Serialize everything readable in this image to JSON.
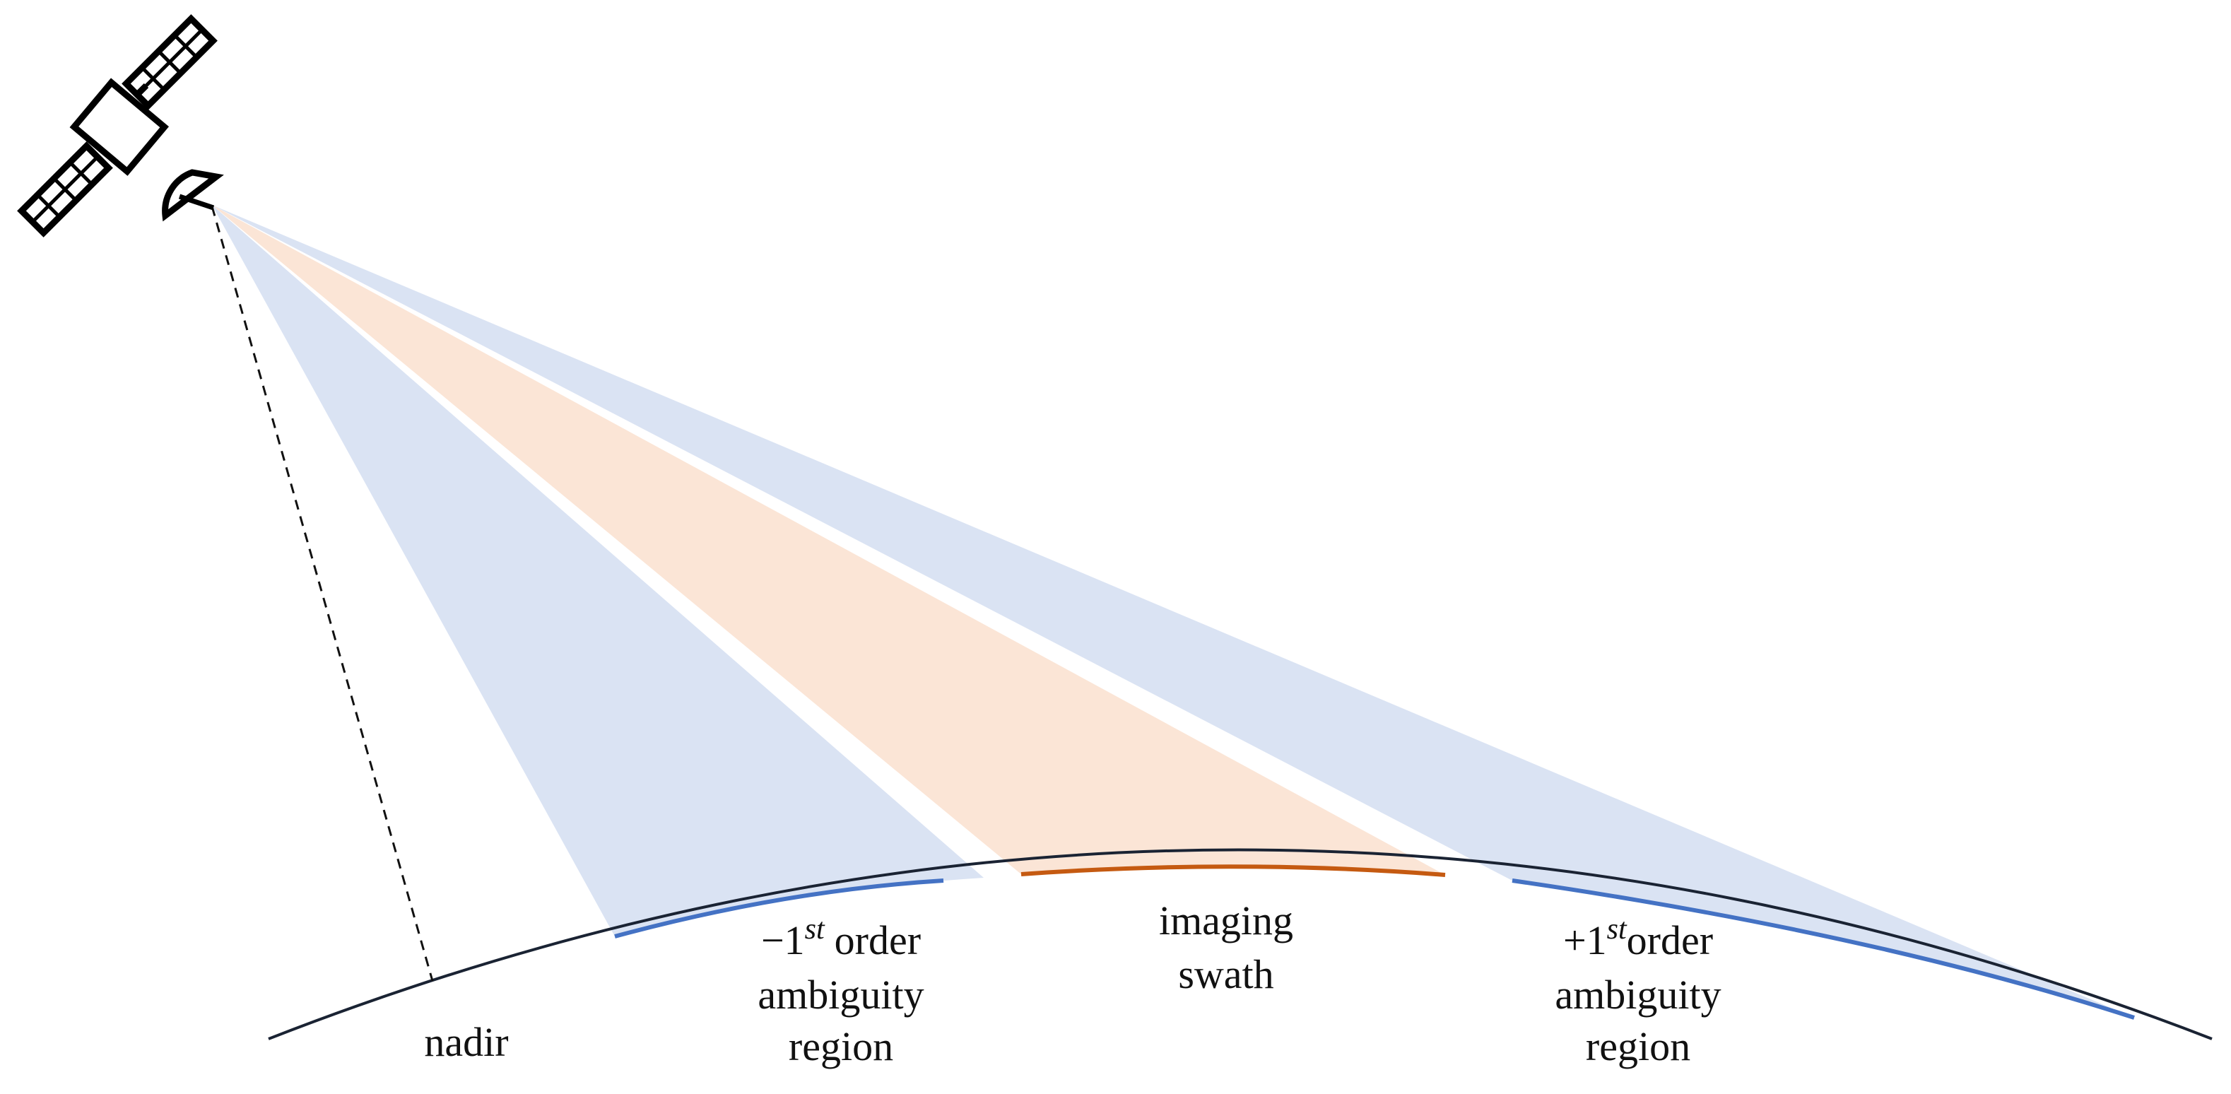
{
  "colors": {
    "ambiguity_beam": "#dae3f3",
    "swath_beam": "#fbe5d6",
    "ambiguity_ground": "#4472c4",
    "swath_ground": "#c55a11",
    "earth_line": "#1a2333",
    "nadir_line": "#111111",
    "satellite": "#000000"
  },
  "icons": {
    "satellite": "satellite-icon"
  },
  "labels": {
    "nadir": "nadir",
    "minus_first": {
      "sign_num": "−1",
      "sup": "st",
      "order": "order",
      "line2": "ambiguity",
      "line3": "region"
    },
    "swath": {
      "line1": "imaging",
      "line2": "swath"
    },
    "plus_first": {
      "sign_num": "+1",
      "sup": "st",
      "order": "order",
      "line2": "ambiguity",
      "line3": "region"
    }
  }
}
